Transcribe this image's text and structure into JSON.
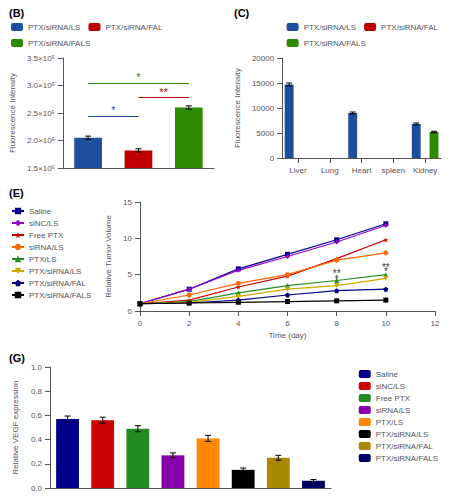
{
  "chart_data": [
    {
      "type": "bar",
      "title": "(B)",
      "categories": [
        "PTX/siRNA/LS",
        "PTX/siRNA/FAL",
        "PTX/siRNA/FALS"
      ],
      "values": [
        205000,
        182000,
        260000
      ],
      "errors": [
        3000,
        3000,
        3000
      ],
      "colors": [
        "#1f4e9e",
        "#c00000",
        "#2e8b00"
      ],
      "ylabel": "Fluorescence Intensity",
      "ylim": [
        150000,
        350000
      ],
      "yticks": [
        {
          "value": 150000,
          "label": "1.5×10⁵"
        },
        {
          "value": 200000,
          "label": "2.0×10⁵"
        },
        {
          "value": 250000,
          "label": "2.5×10⁵"
        },
        {
          "value": 300000,
          "label": "3.0×10⁵"
        },
        {
          "value": 350000,
          "label": "3.5×10⁵"
        }
      ],
      "tick_labels": "y",
      "grid": false,
      "legend": "upper left",
      "annotations": [
        {
          "text": "*",
          "from": "PTX/siRNA/LS",
          "to": "PTX/siRNA/FALS",
          "y": 305000,
          "color": "#2e8b00"
        },
        {
          "text": "**",
          "from": "PTX/siRNA/FAL",
          "to": "PTX/siRNA/FALS",
          "y": 278000,
          "color": "#c00000"
        },
        {
          "text": "*",
          "from": "PTX/siRNA/LS",
          "to": "PTX/siRNA/FAL",
          "y": 245000,
          "color": "#1f4e9e"
        }
      ]
    },
    {
      "type": "bar",
      "title": "(C)",
      "categories": [
        "Liver",
        "Lung",
        "Heart",
        "spleen",
        "Kidney"
      ],
      "series": [
        {
          "name": "PTX/siRNA/LS",
          "color": "#1f4e9e",
          "values": [
            14700,
            0,
            9000,
            0,
            6800
          ],
          "errors": [
            300,
            0,
            200,
            0,
            200
          ]
        },
        {
          "name": "PTX/siRNA/FAL",
          "color": "#c00000",
          "values": [
            0,
            0,
            0,
            0,
            0
          ],
          "errors": [
            0,
            0,
            0,
            0,
            0
          ]
        },
        {
          "name": "PTX/siRNA/FALS",
          "color": "#2e8b00",
          "values": [
            0,
            0,
            0,
            0,
            5200
          ],
          "errors": [
            0,
            0,
            0,
            0,
            150
          ]
        }
      ],
      "ylabel": "Fluorescence Intensity",
      "ylim": [
        0,
        20000
      ],
      "yticks": [
        0,
        5000,
        10000,
        15000,
        20000
      ],
      "grid": false,
      "legend": "upper right"
    },
    {
      "type": "line",
      "title": "(E)",
      "x": [
        0,
        2,
        4,
        6,
        8,
        10
      ],
      "series": [
        {
          "name": "Saline",
          "color": "#00008B",
          "marker": "square",
          "line_style": "solid",
          "values": [
            1,
            3.0,
            5.8,
            7.8,
            9.8,
            12.0
          ]
        },
        {
          "name": "siNC/LS",
          "color": "#9900cc",
          "marker": "diamond",
          "line_style": "solid",
          "values": [
            1,
            3.0,
            5.6,
            7.5,
            9.5,
            11.8
          ]
        },
        {
          "name": "Free PTX",
          "color": "#cc0000",
          "marker": "star",
          "line_style": "solid",
          "values": [
            1,
            1.5,
            3.3,
            4.8,
            7.2,
            9.8
          ]
        },
        {
          "name": "siRNA/LS",
          "color": "#ff6600",
          "marker": "circle",
          "line_style": "solid",
          "values": [
            1,
            2.2,
            3.8,
            5.0,
            7.0,
            8.0
          ]
        },
        {
          "name": "PTX/LS",
          "color": "#228B22",
          "marker": "triangle",
          "line_style": "solid",
          "values": [
            1,
            1.3,
            2.5,
            3.5,
            4.2,
            5.0
          ]
        },
        {
          "name": "PTX/siRNA/LS",
          "color": "#ccaa00",
          "marker": "triangle_down",
          "line_style": "solid",
          "values": [
            1,
            1.2,
            2.0,
            3.0,
            3.5,
            4.5
          ]
        },
        {
          "name": "PTX/siRNA/FAL",
          "color": "#000080",
          "marker": "pentagon",
          "line_style": "solid",
          "values": [
            1,
            1.1,
            1.5,
            2.2,
            2.8,
            3.0
          ]
        },
        {
          "name": "PTX/siRNA/FALS",
          "color": "#000000",
          "marker": "square",
          "line_style": "solid",
          "values": [
            1,
            1.1,
            1.2,
            1.3,
            1.4,
            1.5
          ]
        }
      ],
      "xlabel": "Time (day)",
      "ylabel": "Relative Tumor Volume",
      "xlim": [
        0,
        12
      ],
      "xticks": [
        0,
        2,
        4,
        6,
        8,
        10,
        12
      ],
      "ylim": [
        0,
        15
      ],
      "yticks": [
        0,
        5,
        10,
        15
      ],
      "grid": false,
      "legend": "upper left",
      "annotations": [
        {
          "text": "**",
          "x": 8.0,
          "y": 4.5
        },
        {
          "text": "**",
          "x": 10.0,
          "y": 5.3
        },
        {
          "text": "*",
          "x": 8.0,
          "y": 3.7
        },
        {
          "text": "*",
          "x": 10.0,
          "y": 4.7
        }
      ]
    },
    {
      "type": "bar",
      "title": "(G)",
      "categories": [
        "Saline",
        "siNC/LS",
        "Free PTX",
        "siRNA/LS",
        "PTX/LS",
        "PTX/siRNA/LS",
        "PTX/siRNA/FAL",
        "PTX/siRNA/FALS"
      ],
      "values": [
        0.57,
        0.56,
        0.49,
        0.27,
        0.41,
        0.15,
        0.25,
        0.06
      ],
      "errors": [
        0.025,
        0.025,
        0.025,
        0.02,
        0.025,
        0.015,
        0.02,
        0.01
      ],
      "colors": [
        "#00008B",
        "#cc0000",
        "#228B22",
        "#8800aa",
        "#ff8800",
        "#000000",
        "#aa8800",
        "#000060"
      ],
      "ylabel": "Relative VEGF expression",
      "ylim": [
        0,
        1.0
      ],
      "yticks": [
        {
          "value": 0.0,
          "label": "0.0"
        },
        {
          "value": 0.2,
          "label": "0.2"
        },
        {
          "value": 0.4,
          "label": "0.4"
        },
        {
          "value": 0.6,
          "label": "0.6"
        },
        {
          "value": 0.8,
          "label": "0.8"
        },
        {
          "value": 1.0,
          "label": "1.0"
        }
      ],
      "tick_labels": "y",
      "grid": false,
      "legend": "upper right"
    }
  ]
}
